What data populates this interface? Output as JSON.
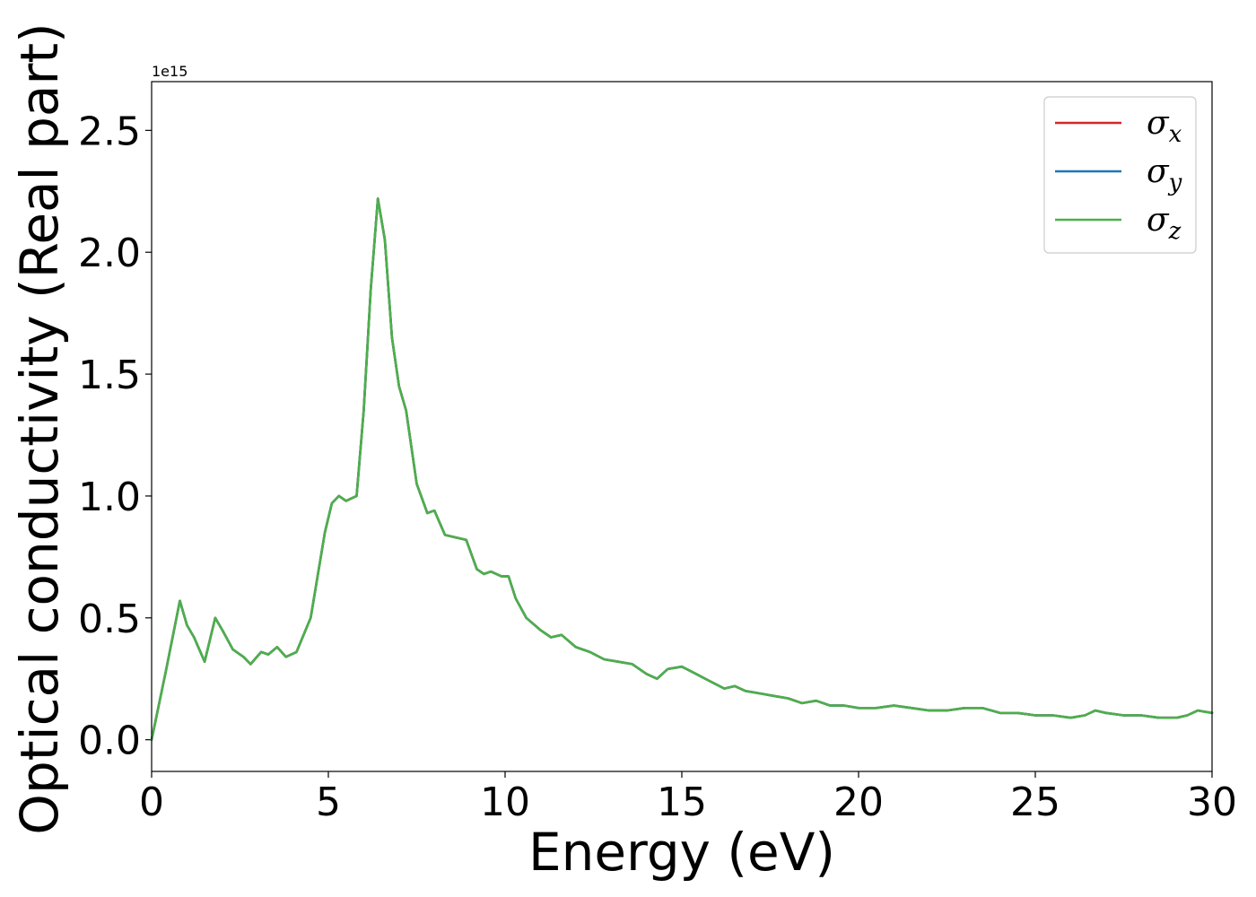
{
  "chart_data": {
    "type": "line",
    "xlabel": "Energy (eV)",
    "ylabel": "Optical conductivity (Real part)",
    "y_offset_label": "1e15",
    "xlim": [
      0,
      30
    ],
    "ylim": [
      -0.13,
      2.7
    ],
    "x_ticks": [
      0,
      5,
      10,
      15,
      20,
      25,
      30
    ],
    "x_tick_labels": [
      "0",
      "5",
      "10",
      "15",
      "20",
      "25",
      "30"
    ],
    "y_ticks": [
      0.0,
      0.5,
      1.0,
      1.5,
      2.0,
      2.5
    ],
    "y_tick_labels": [
      "0.0",
      "0.5",
      "1.0",
      "1.5",
      "2.0",
      "2.5"
    ],
    "grid": false,
    "legend_position": "top-right",
    "x": [
      0,
      0.4,
      0.8,
      1.0,
      1.2,
      1.5,
      1.8,
      2.0,
      2.3,
      2.6,
      2.8,
      3.1,
      3.3,
      3.55,
      3.8,
      4.1,
      4.5,
      4.9,
      5.1,
      5.3,
      5.5,
      5.8,
      6.0,
      6.2,
      6.4,
      6.6,
      6.8,
      7.0,
      7.2,
      7.5,
      7.8,
      8.0,
      8.3,
      8.6,
      8.9,
      9.2,
      9.4,
      9.6,
      9.9,
      10.1,
      10.3,
      10.6,
      11.0,
      11.3,
      11.6,
      12.0,
      12.4,
      12.8,
      13.2,
      13.6,
      14.0,
      14.3,
      14.6,
      15.0,
      15.4,
      15.8,
      16.2,
      16.5,
      16.8,
      17.2,
      17.6,
      18.0,
      18.4,
      18.8,
      19.2,
      19.6,
      20.0,
      20.5,
      21.0,
      21.5,
      22.0,
      22.5,
      23.0,
      23.5,
      24.0,
      24.5,
      25.0,
      25.5,
      26.0,
      26.4,
      26.7,
      27.0,
      27.5,
      28.0,
      28.5,
      29.0,
      29.3,
      29.6,
      30.0
    ],
    "series": [
      {
        "name": "σx",
        "color": "#d62728",
        "values": [
          0.0,
          0.28,
          0.57,
          0.47,
          0.42,
          0.32,
          0.5,
          0.45,
          0.37,
          0.34,
          0.31,
          0.36,
          0.35,
          0.38,
          0.34,
          0.36,
          0.5,
          0.85,
          0.97,
          1.0,
          0.98,
          1.0,
          1.35,
          1.85,
          2.22,
          2.05,
          1.65,
          1.45,
          1.35,
          1.05,
          0.93,
          0.94,
          0.84,
          0.83,
          0.82,
          0.7,
          0.68,
          0.69,
          0.67,
          0.67,
          0.58,
          0.5,
          0.45,
          0.42,
          0.43,
          0.38,
          0.36,
          0.33,
          0.32,
          0.31,
          0.27,
          0.25,
          0.29,
          0.3,
          0.27,
          0.24,
          0.21,
          0.22,
          0.2,
          0.19,
          0.18,
          0.17,
          0.15,
          0.16,
          0.14,
          0.14,
          0.13,
          0.13,
          0.14,
          0.13,
          0.12,
          0.12,
          0.13,
          0.13,
          0.11,
          0.11,
          0.1,
          0.1,
          0.09,
          0.1,
          0.12,
          0.11,
          0.1,
          0.1,
          0.09,
          0.09,
          0.1,
          0.12,
          0.11
        ]
      },
      {
        "name": "σy",
        "color": "#1f77b4",
        "values": [
          0.0,
          0.28,
          0.57,
          0.47,
          0.42,
          0.32,
          0.5,
          0.45,
          0.37,
          0.34,
          0.31,
          0.36,
          0.35,
          0.38,
          0.34,
          0.36,
          0.5,
          0.85,
          0.97,
          1.0,
          0.98,
          1.0,
          1.35,
          1.85,
          2.22,
          2.05,
          1.65,
          1.45,
          1.35,
          1.05,
          0.93,
          0.94,
          0.84,
          0.83,
          0.82,
          0.7,
          0.68,
          0.69,
          0.67,
          0.67,
          0.58,
          0.5,
          0.45,
          0.42,
          0.43,
          0.38,
          0.36,
          0.33,
          0.32,
          0.31,
          0.27,
          0.25,
          0.29,
          0.3,
          0.27,
          0.24,
          0.21,
          0.22,
          0.2,
          0.19,
          0.18,
          0.17,
          0.15,
          0.16,
          0.14,
          0.14,
          0.13,
          0.13,
          0.14,
          0.13,
          0.12,
          0.12,
          0.13,
          0.13,
          0.11,
          0.11,
          0.1,
          0.1,
          0.09,
          0.1,
          0.12,
          0.11,
          0.1,
          0.1,
          0.09,
          0.09,
          0.1,
          0.12,
          0.11
        ]
      },
      {
        "name": "σz",
        "color": "#4daf4a",
        "values": [
          0.0,
          0.28,
          0.57,
          0.47,
          0.42,
          0.32,
          0.5,
          0.45,
          0.37,
          0.34,
          0.31,
          0.36,
          0.35,
          0.38,
          0.34,
          0.36,
          0.5,
          0.85,
          0.97,
          1.0,
          0.98,
          1.0,
          1.35,
          1.85,
          2.22,
          2.05,
          1.65,
          1.45,
          1.35,
          1.05,
          0.93,
          0.94,
          0.84,
          0.83,
          0.82,
          0.7,
          0.68,
          0.69,
          0.67,
          0.67,
          0.58,
          0.5,
          0.45,
          0.42,
          0.43,
          0.38,
          0.36,
          0.33,
          0.32,
          0.31,
          0.27,
          0.25,
          0.29,
          0.3,
          0.27,
          0.24,
          0.21,
          0.22,
          0.2,
          0.19,
          0.18,
          0.17,
          0.15,
          0.16,
          0.14,
          0.14,
          0.13,
          0.13,
          0.14,
          0.13,
          0.12,
          0.12,
          0.13,
          0.13,
          0.11,
          0.11,
          0.1,
          0.1,
          0.09,
          0.1,
          0.12,
          0.11,
          0.1,
          0.1,
          0.09,
          0.09,
          0.1,
          0.12,
          0.11
        ]
      }
    ],
    "legend": [
      {
        "symbol": "σ",
        "subscript": "x",
        "color": "#d62728"
      },
      {
        "symbol": "σ",
        "subscript": "y",
        "color": "#1f77b4"
      },
      {
        "symbol": "σ",
        "subscript": "z",
        "color": "#4daf4a"
      }
    ]
  }
}
